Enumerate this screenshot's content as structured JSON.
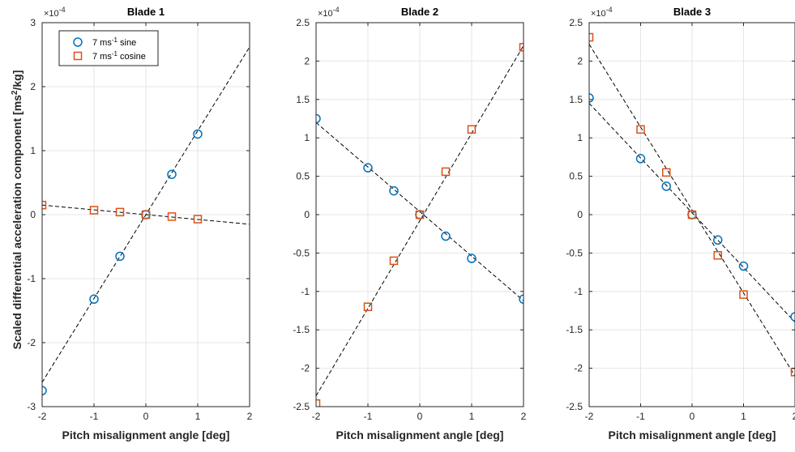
{
  "chart_data": [
    {
      "type": "scatter",
      "title": "Blade 1",
      "xlabel": "Pitch misalignment angle [deg]",
      "ylabel": "Scaled differential acceleration component [ms²/kg]",
      "ylabel_parts": [
        "Scaled differential acceleration component [ms",
        "2",
        "/kg]"
      ],
      "y_exponent_base": "×10",
      "y_exponent": "-4",
      "xlim": [
        -2,
        2
      ],
      "ylim": [
        -3,
        3
      ],
      "xticks": [
        -2,
        -1,
        0,
        1,
        2
      ],
      "yticks": [
        -3,
        -2,
        -1,
        0,
        1,
        2,
        3
      ],
      "grid": true,
      "legend_position": "top-left",
      "series": [
        {
          "name": "7 ms⁻¹ sine",
          "name_parts": [
            "7 ms",
            "-1",
            " sine"
          ],
          "marker": "circle",
          "color": "#0072BD",
          "x": [
            -2,
            -1,
            -0.5,
            0,
            0.5,
            1
          ],
          "y": [
            -2.75,
            -1.32,
            -0.65,
            0,
            0.63,
            1.26
          ]
        },
        {
          "name": "7 ms⁻¹ cosine",
          "name_parts": [
            "7 ms",
            "-1",
            " cosine"
          ],
          "marker": "square",
          "color": "#D95319",
          "x": [
            -2,
            -1,
            -0.5,
            0,
            0.5,
            1
          ],
          "y": [
            0.15,
            0.07,
            0.04,
            0,
            -0.03,
            -0.07
          ]
        }
      ],
      "fits": [
        {
          "x": [
            -2,
            2
          ],
          "y": [
            -2.62,
            2.62
          ]
        },
        {
          "x": [
            -2,
            2
          ],
          "y": [
            0.15,
            -0.15
          ]
        }
      ]
    },
    {
      "type": "scatter",
      "title": "Blade 2",
      "xlabel": "Pitch misalignment angle [deg]",
      "y_exponent_base": "×10",
      "y_exponent": "-4",
      "xlim": [
        -2,
        2
      ],
      "ylim": [
        -2.5,
        2.5
      ],
      "xticks": [
        -2,
        -1,
        0,
        1,
        2
      ],
      "yticks": [
        -2.5,
        -2,
        -1.5,
        -1,
        -0.5,
        0,
        0.5,
        1,
        1.5,
        2,
        2.5
      ],
      "grid": true,
      "series": [
        {
          "marker": "circle",
          "color": "#0072BD",
          "x": [
            -2,
            -1,
            -0.5,
            0,
            0.5,
            1,
            2
          ],
          "y": [
            1.25,
            0.61,
            0.31,
            0,
            -0.28,
            -0.57,
            -1.1
          ]
        },
        {
          "marker": "square",
          "color": "#D95319",
          "x": [
            -2,
            -1,
            -0.5,
            0,
            0.5,
            1,
            2
          ],
          "y": [
            -2.46,
            -1.2,
            -0.6,
            0,
            0.56,
            1.11,
            2.18
          ]
        }
      ],
      "fits": [
        {
          "x": [
            -2,
            2
          ],
          "y": [
            1.2,
            -1.12
          ]
        },
        {
          "x": [
            -2,
            2
          ],
          "y": [
            -2.36,
            2.2
          ]
        }
      ]
    },
    {
      "type": "scatter",
      "title": "Blade 3",
      "xlabel": "Pitch misalignment angle [deg]",
      "y_exponent_base": "×10",
      "y_exponent": "-4",
      "xlim": [
        -2,
        2
      ],
      "ylim": [
        -2.5,
        2.5
      ],
      "xticks": [
        -2,
        -1,
        0,
        1,
        2
      ],
      "yticks": [
        -2.5,
        -2,
        -1.5,
        -1,
        -0.5,
        0,
        0.5,
        1,
        1.5,
        2,
        2.5
      ],
      "grid": true,
      "series": [
        {
          "marker": "circle",
          "color": "#0072BD",
          "x": [
            -2,
            -1,
            -0.5,
            0,
            0.5,
            1,
            2
          ],
          "y": [
            1.52,
            0.73,
            0.37,
            0,
            -0.33,
            -0.67,
            -1.33
          ]
        },
        {
          "marker": "square",
          "color": "#D95319",
          "x": [
            -2,
            -1,
            -0.5,
            0,
            0.5,
            1,
            2
          ],
          "y": [
            2.31,
            1.11,
            0.55,
            0,
            -0.53,
            -1.04,
            -2.05
          ]
        }
      ],
      "fits": [
        {
          "x": [
            -2,
            2
          ],
          "y": [
            1.45,
            -1.4
          ]
        },
        {
          "x": [
            -2,
            2
          ],
          "y": [
            2.22,
            -2.1
          ]
        }
      ]
    }
  ]
}
